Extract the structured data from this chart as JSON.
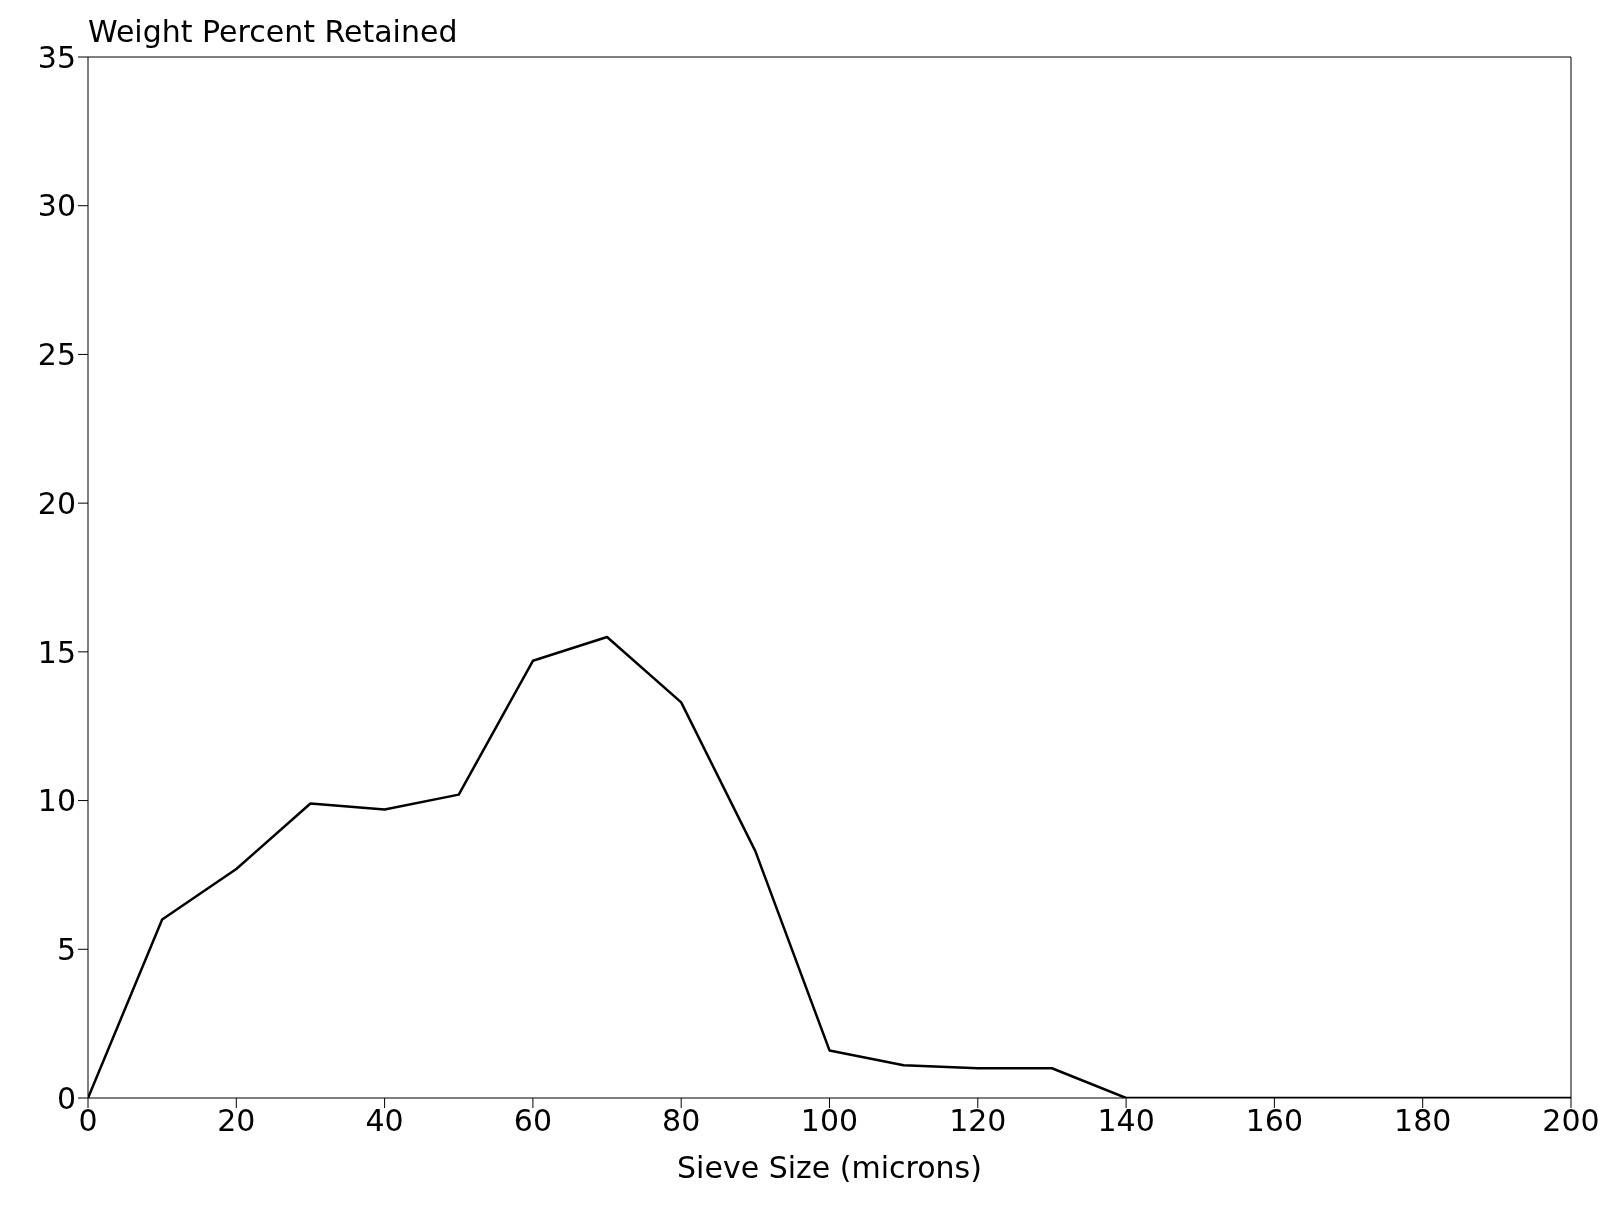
{
  "chart_data": {
    "type": "line",
    "ylabel": "Weight Percent Retained",
    "xlabel": "Sieve Size (microns)",
    "x": [
      0,
      10,
      20,
      30,
      40,
      50,
      60,
      70,
      80,
      90,
      100,
      110,
      120,
      130,
      140,
      150,
      160,
      170,
      180,
      190,
      200
    ],
    "series": [
      {
        "color": "#000000",
        "values": [
          0,
          6,
          7.7,
          9.9,
          9.7,
          10.2,
          14.7,
          15.5,
          13.3,
          8.3,
          1.6,
          1.1,
          1.0,
          1.0,
          0,
          0,
          0,
          0,
          0,
          0,
          0
        ]
      }
    ],
    "xlim": [
      0,
      200
    ],
    "xticks": [
      0,
      20,
      40,
      60,
      80,
      100,
      120,
      140,
      160,
      180,
      200
    ],
    "ylim": [
      0,
      35
    ],
    "yticks": [
      0,
      5,
      10,
      15,
      20,
      25,
      30,
      35
    ],
    "grid": false,
    "legend": false,
    "marker": "none",
    "line_style": "solid"
  }
}
